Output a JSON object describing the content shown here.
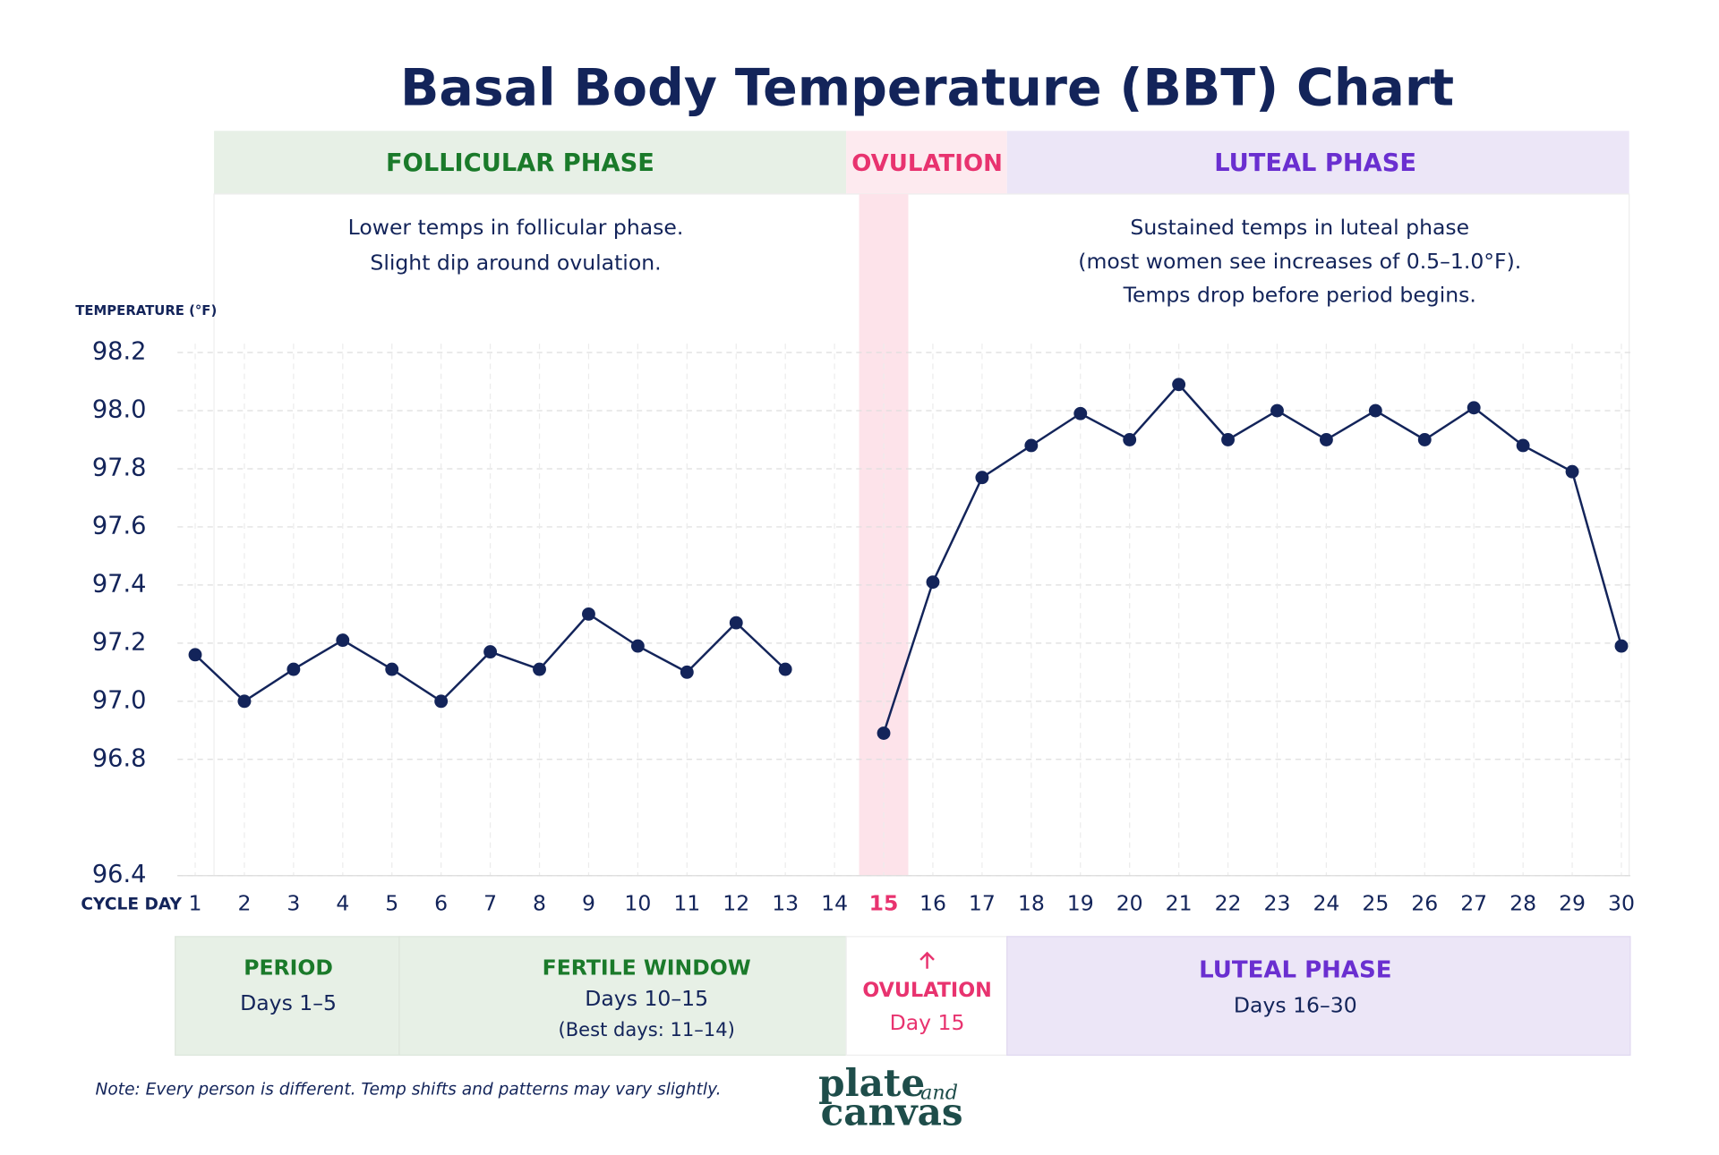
{
  "chart_data": {
    "type": "line",
    "title": "Basal Body Temperature (BBT) Chart",
    "y_label": "TEMPERATURE (°F)",
    "x_label": "CYCLE DAY",
    "categories": [
      1,
      2,
      3,
      4,
      5,
      6,
      7,
      8,
      9,
      10,
      11,
      12,
      13,
      14,
      15,
      16,
      17,
      18,
      19,
      20,
      21,
      22,
      23,
      24,
      25,
      26,
      27,
      28,
      29,
      30
    ],
    "values": [
      97.16,
      97.0,
      97.11,
      97.21,
      97.11,
      97.0,
      97.17,
      97.11,
      97.3,
      97.19,
      97.1,
      97.27,
      97.11,
      null,
      96.89,
      97.41,
      97.77,
      97.88,
      97.99,
      97.9,
      98.09,
      97.9,
      98.0,
      97.9,
      98.0,
      97.9,
      98.01,
      97.88,
      97.79,
      97.19
    ],
    "color": "#13245a",
    "ylim": [
      96.4,
      98.2
    ],
    "yticks": [
      96.4,
      96.8,
      {
        "value": 97,
        "label": "97.0"
      },
      97.2,
      97.4,
      97.6,
      97.8,
      {
        "value": 98,
        "label": "98.0"
      },
      98.2
    ],
    "grid": true,
    "highlight": {
      "category": 15,
      "color": "#e8336f",
      "band_color": "#fde3ea"
    }
  },
  "phases": [
    {
      "label": "FOLLICULAR PHASE",
      "color": "#1a7a2a",
      "background": "#e7f0e6"
    },
    {
      "label": "OVULATION",
      "color": "#e8336f",
      "background": "#fdeaef"
    },
    {
      "label": "LUTEAL PHASE",
      "color": "#6a2fd0",
      "background": "#ece6f7"
    }
  ],
  "annotations": {
    "follicular": [
      "Lower temps in follicular phase.",
      "Slight dip around ovulation."
    ],
    "luteal": [
      "Sustained temps in luteal phase",
      "(most women see increases of 0.5–1.0°F).",
      "Temps drop before period begins."
    ]
  },
  "panels": [
    {
      "title": "PERIOD",
      "lines": [
        "Days 1–5"
      ]
    },
    {
      "title": "FERTILE WINDOW",
      "lines": [
        "Days 10–15",
        "(Best days: 11–14)"
      ]
    },
    {
      "title": "OVULATION",
      "lines": [
        "Day 15"
      ]
    },
    {
      "title": "LUTEAL PHASE",
      "lines": [
        "Days 16–30"
      ]
    }
  ],
  "note": "Note: Every person is different. Temp shifts and patterns may vary slightly.",
  "logo": {
    "top": "plate",
    "small": "and",
    "bottom": "canvas"
  }
}
